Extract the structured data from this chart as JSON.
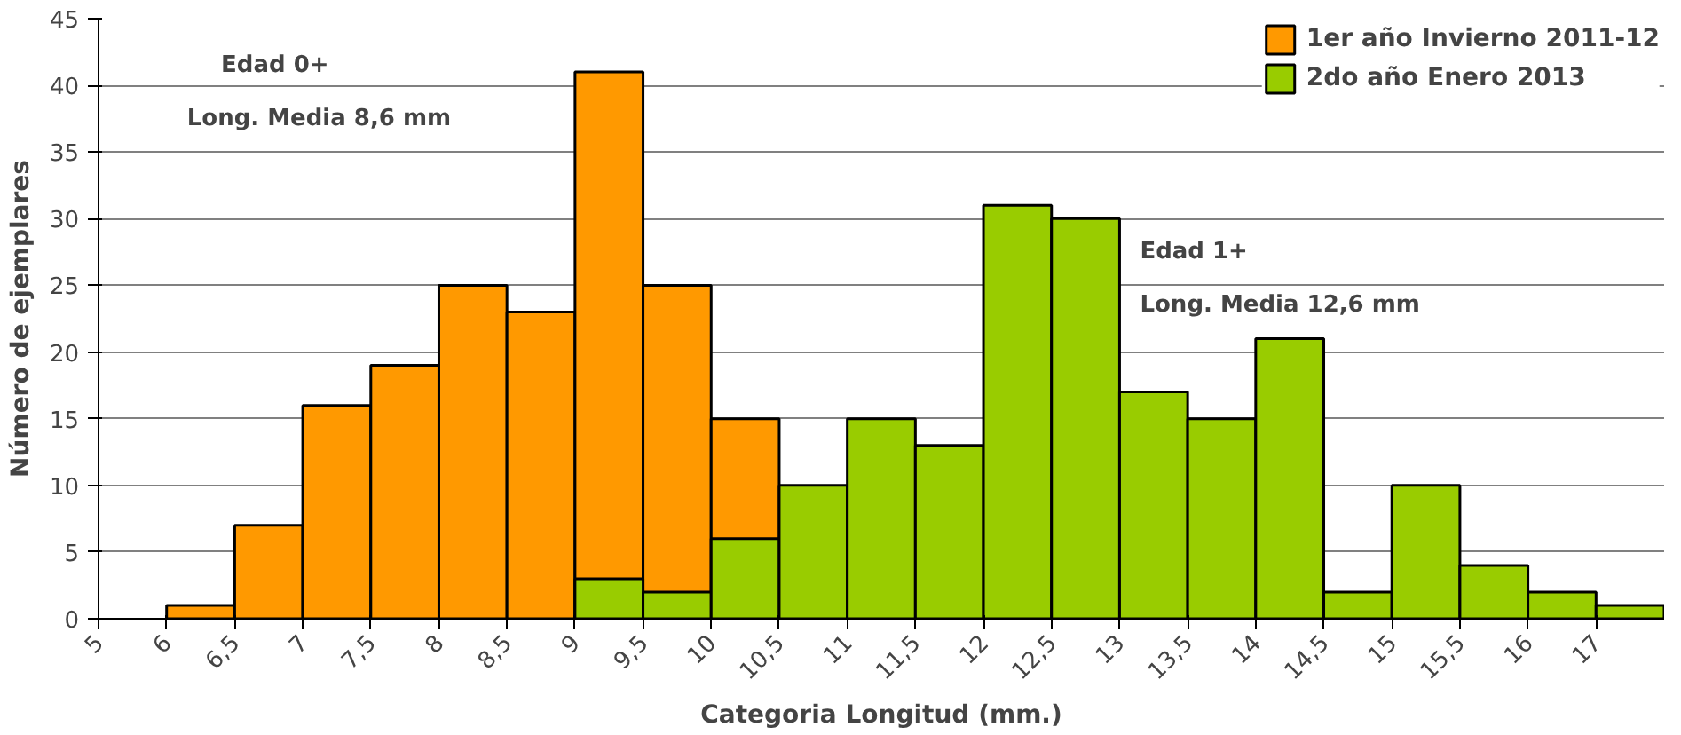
{
  "chart_data": {
    "type": "bar",
    "xlabel": "Categoria Longitud (mm.)",
    "ylabel": "Número de ejemplares",
    "categories": [
      "5",
      "6",
      "6,5",
      "7",
      "7,5",
      "8",
      "8,5",
      "9",
      "9,5",
      "10",
      "10,5",
      "11",
      "11,5",
      "12",
      "12,5",
      "13",
      "13,5",
      "14",
      "14,5",
      "15",
      "15,5",
      "16",
      "17"
    ],
    "series": [
      {
        "name": "1er año Invierno 2011-12",
        "color": "#ff9900",
        "values": [
          null,
          1,
          7,
          16,
          19,
          25,
          23,
          41,
          25,
          15,
          null,
          null,
          null,
          null,
          null,
          null,
          null,
          null,
          null,
          null,
          null,
          null,
          null
        ]
      },
      {
        "name": "2do año Enero 2013",
        "color": "#99cc00",
        "values": [
          null,
          null,
          null,
          null,
          null,
          null,
          null,
          3,
          2,
          6,
          10,
          15,
          13,
          31,
          30,
          17,
          15,
          21,
          2,
          10,
          4,
          2,
          1
        ]
      }
    ],
    "ylim": [
      0,
      45
    ],
    "yticks": [
      0,
      5,
      10,
      15,
      20,
      25,
      30,
      35,
      40,
      45
    ],
    "grid": "y",
    "legend": "top right",
    "annotations": [
      "Edad 0+",
      "Long. Media 8,6 mm",
      "Edad 1+",
      "Long. Media 12,6 mm"
    ]
  }
}
